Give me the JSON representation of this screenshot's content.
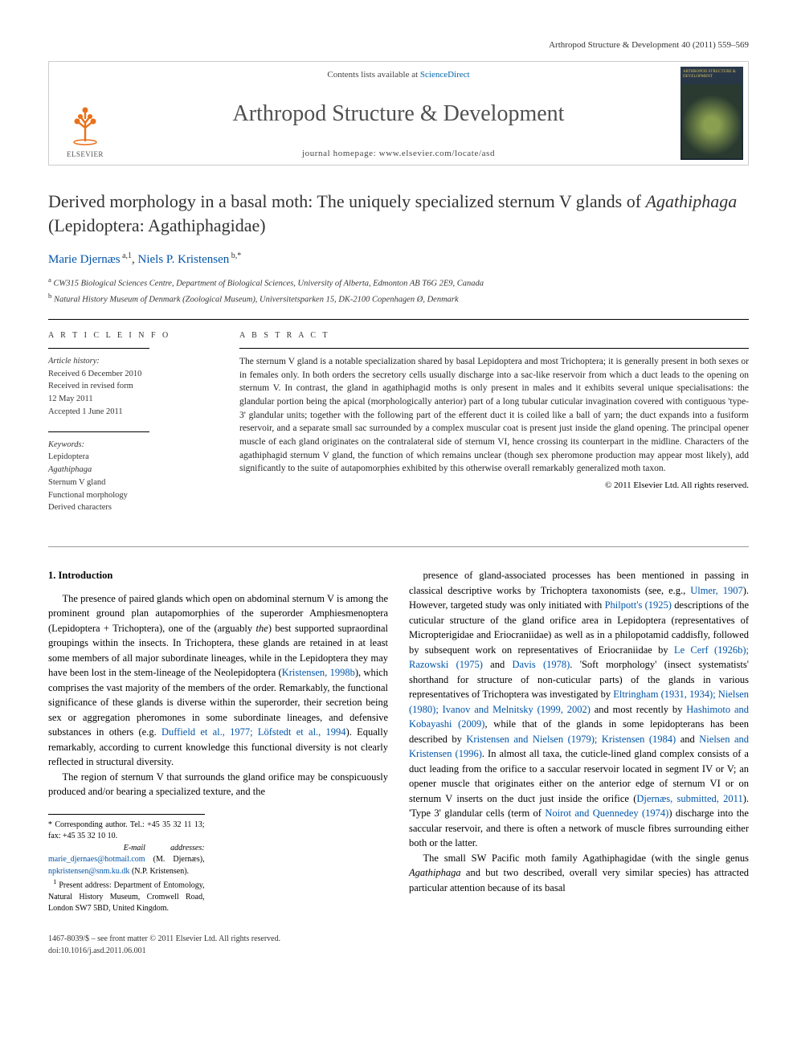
{
  "running_header": "Arthropod Structure & Development 40 (2011) 559–569",
  "banner": {
    "contents_prefix": "Contents lists available at ",
    "contents_link": "ScienceDirect",
    "journal_name": "Arthropod Structure & Development",
    "homepage_prefix": "journal homepage: ",
    "homepage_url": "www.elsevier.com/locate/asd",
    "publisher_name": "ELSEVIER",
    "cover_label": "ARTHROPOD STRUCTURE & DEVELOPMENT"
  },
  "title_html": "Derived morphology in a basal moth: The uniquely specialized sternum V glands of <em>Agathiphaga</em> (Lepidoptera: Agathiphagidae)",
  "authors_html": "<a href=\"#\">Marie Djernæs</a><sup> a,1</sup>, <a href=\"#\">Niels P. Kristensen</a><sup> b,</sup><sup>*</sup>",
  "affiliations": {
    "a": "CW315 Biological Sciences Centre, Department of Biological Sciences, University of Alberta, Edmonton AB T6G 2E9, Canada",
    "b": "Natural History Museum of Denmark (Zoological Museum), Universitetsparken 15, DK-2100 Copenhagen Ø, Denmark"
  },
  "info": {
    "heading_info": "A R T I C L E   I N F O",
    "heading_abstract": "A B S T R A C T",
    "history_label": "Article history:",
    "history_lines": [
      "Received 6 December 2010",
      "Received in revised form",
      "12 May 2011",
      "Accepted 1 June 2011"
    ],
    "keywords_label": "Keywords:",
    "keywords": [
      "Lepidoptera",
      "Agathiphaga",
      "Sternum V gland",
      "Functional morphology",
      "Derived characters"
    ]
  },
  "abstract_text": "The sternum V gland is a notable specialization shared by basal Lepidoptera and most Trichoptera; it is generally present in both sexes or in females only. In both orders the secretory cells usually discharge into a sac-like reservoir from which a duct leads to the opening on sternum V. In contrast, the gland in agathiphagid moths is only present in males and it exhibits several unique specialisations: the glandular portion being the apical (morphologically anterior) part of a long tubular cuticular invagination covered with contiguous 'type-3' glandular units; together with the following part of the efferent duct it is coiled like a ball of yarn; the duct expands into a fusiform reservoir, and a separate small sac surrounded by a complex muscular coat is present just inside the gland opening. The principal opener muscle of each gland originates on the contralateral side of sternum VI, hence crossing its counterpart in the midline. Characters of the agathiphagid sternum V gland, the function of which remains unclear (though sex pheromone production may appear most likely), add significantly to the suite of autapomorphies exhibited by this otherwise overall remarkably generalized moth taxon.",
  "copyright": "© 2011 Elsevier Ltd. All rights reserved.",
  "section1_heading": "1. Introduction",
  "para1_html": "The presence of paired glands which open on abdominal sternum V is among the prominent ground plan autapomorphies of the superorder Amphiesmenoptera (Lepidoptera + Trichoptera), one of the (arguably <em>the</em>) best supported supraordinal groupings within the insects. In Trichoptera, these glands are retained in at least some members of all major subordinate lineages, while in the Lepidoptera they may have been lost in the stem-lineage of the Neolepidoptera (<a href=\"#\">Kristensen, 1998b</a>), which comprises the vast majority of the members of the order. Remarkably, the functional significance of these glands is diverse within the superorder, their secretion being sex or aggregation pheromones in some subordinate lineages, and defensive substances in others (e.g. <a href=\"#\">Duffield et al., 1977; Löfstedt et al., 1994</a>). Equally remarkably, according to current knowledge this functional diversity is not clearly reflected in structural diversity.",
  "para2_html": "The region of sternum V that surrounds the gland orifice may be conspicuously produced and/or bearing a specialized texture, and the",
  "para3_html": "presence of gland-associated processes has been mentioned in passing in classical descriptive works by Trichoptera taxonomists (see, e.g., <a href=\"#\">Ulmer, 1907</a>). However, targeted study was only initiated with <a href=\"#\">Philpott's (1925)</a> descriptions of the cuticular structure of the gland orifice area in Lepidoptera (representatives of Micropterigidae and Eriocraniidae) as well as in a philopotamid caddisfly, followed by subsequent work on representatives of Eriocraniidae by <a href=\"#\">Le Cerf (1926b); Razowski (1975)</a> and <a href=\"#\">Davis (1978)</a>. 'Soft morphology' (insect systematists' shorthand for structure of non-cuticular parts) of the glands in various representatives of Trichoptera was investigated by <a href=\"#\">Eltringham (1931, 1934); Nielsen (1980); Ivanov and Melnitsky (1999, 2002)</a> and most recently by <a href=\"#\">Hashimoto and Kobayashi (2009)</a>, while that of the glands in some lepidopterans has been described by <a href=\"#\">Kristensen and Nielsen (1979); Kristensen (1984)</a> and <a href=\"#\">Nielsen and Kristensen (1996)</a>. In almost all taxa, the cuticle-lined gland complex consists of a duct leading from the orifice to a saccular reservoir located in segment IV or V; an opener muscle that originates either on the anterior edge of sternum VI or on sternum V inserts on the duct just inside the orifice (<a href=\"#\">Djernæs, submitted, 2011</a>). 'Type 3' glandular cells (term of <a href=\"#\">Noirot and Quennedey (1974)</a>) discharge into the saccular reservoir, and there is often a network of muscle fibres surrounding either both or the latter.",
  "para4_html": "The small SW Pacific moth family Agathiphagidae (with the single genus <em>Agathiphaga</em> and but two described, overall very similar species) has attracted particular attention because of its basal",
  "footnotes": {
    "corr": "Corresponding author. Tel.: +45 35 32 11 13; fax: +45 35 32 10 10.",
    "email_label": "E-mail addresses:",
    "email1": "marie_djernaes@hotmail.com",
    "email1_who": "(M. Djernæs),",
    "email2": "npkristensen@snm.ku.dk",
    "email2_who": "(N.P. Kristensen).",
    "present": "Present address: Department of Entomology, Natural History Museum, Cromwell Road, London SW7 5BD, United Kingdom."
  },
  "bottom": {
    "line1": "1467-8039/$ – see front matter © 2011 Elsevier Ltd. All rights reserved.",
    "line2": "doi:10.1016/j.asd.2011.06.001"
  },
  "colors": {
    "link": "#0055aa",
    "text": "#222222",
    "rule": "#000000",
    "elsevier_orange": "#e9711c"
  }
}
